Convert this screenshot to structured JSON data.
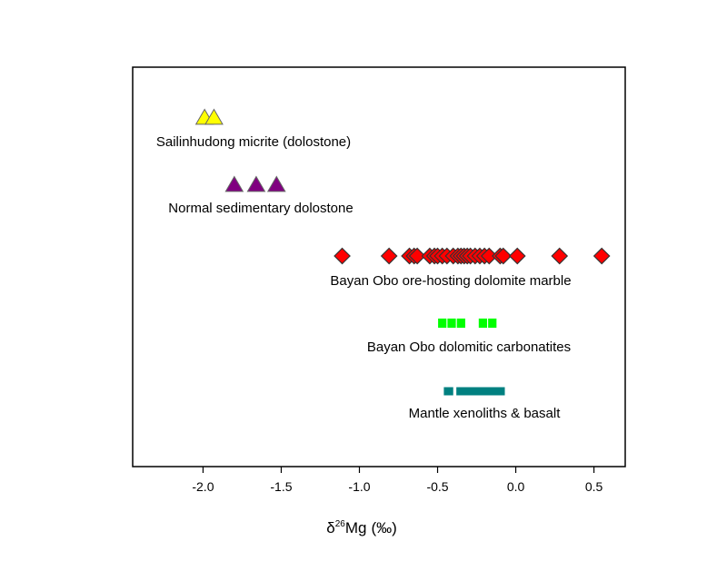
{
  "chart_data": {
    "type": "scatter",
    "xlabel": {
      "symbol": "δ",
      "superscript": "26",
      "element": "Mg",
      "unit": "(‰)"
    },
    "xlim": [
      -2.45,
      0.7
    ],
    "xticks": [
      -2.0,
      -1.5,
      -1.0,
      -0.5,
      0.0,
      0.5
    ],
    "xtick_labels": [
      "-2.0",
      "-1.5",
      "-1.0",
      "-0.5",
      "0.0",
      "0.5"
    ],
    "grid": false,
    "legend": "none",
    "groups": [
      {
        "label": "Sailinhudong micrite (dolostone)",
        "marker": "triangle",
        "color": "#ffff00",
        "x": [
          -1.99,
          -1.93
        ]
      },
      {
        "label": "Normal sedimentary dolostone",
        "marker": "triangle",
        "color": "#800080",
        "x": [
          -1.8,
          -1.66,
          -1.53
        ]
      },
      {
        "label": "Bayan Obo ore-hosting dolomite marble",
        "marker": "diamond",
        "color": "#ff0000",
        "x": [
          -1.11,
          -0.81,
          -0.68,
          -0.65,
          -0.63,
          -0.55,
          -0.52,
          -0.5,
          -0.47,
          -0.44,
          -0.4,
          -0.37,
          -0.35,
          -0.33,
          -0.31,
          -0.29,
          -0.26,
          -0.23,
          -0.2,
          -0.17,
          -0.1,
          -0.08,
          0.01,
          0.28,
          0.55
        ]
      },
      {
        "label": "Bayan Obo dolomitic carbonatites",
        "marker": "square",
        "color": "#00ff00",
        "x": [
          -0.47,
          -0.41,
          -0.35,
          -0.21,
          -0.15
        ]
      },
      {
        "label": "Mantle xenoliths & basalt",
        "marker": "range",
        "color": "#008080",
        "ranges": [
          [
            -0.46,
            -0.4
          ],
          [
            -0.38,
            -0.07
          ]
        ]
      }
    ]
  }
}
